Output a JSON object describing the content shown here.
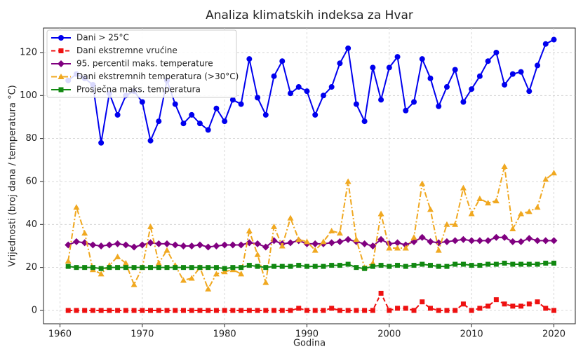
{
  "chart_data": {
    "type": "line",
    "title": "Analiza klimatskih indeksa za Hvar",
    "x_label": "Godina",
    "y_label": "Vrijednosti (broj dana / temperatura °C)",
    "x": [
      1961,
      1962,
      1963,
      1964,
      1965,
      1966,
      1967,
      1968,
      1969,
      1970,
      1971,
      1972,
      1973,
      1974,
      1975,
      1976,
      1977,
      1978,
      1979,
      1980,
      1981,
      1982,
      1983,
      1984,
      1985,
      1986,
      1987,
      1988,
      1989,
      1990,
      1991,
      1992,
      1993,
      1994,
      1995,
      1996,
      1997,
      1998,
      1999,
      2000,
      2001,
      2002,
      2003,
      2004,
      2005,
      2006,
      2007,
      2008,
      2009,
      2010,
      2011,
      2012,
      2013,
      2014,
      2015,
      2016,
      2017,
      2018,
      2019,
      2020
    ],
    "xlim": [
      1958,
      2022.6
    ],
    "xticks": [
      1960,
      1970,
      1980,
      1990,
      2000,
      2010,
      2020
    ],
    "ylim": [
      -6.2,
      131.4
    ],
    "yticks": [
      0,
      20,
      40,
      60,
      80,
      100,
      120
    ],
    "grid": true,
    "legend": "upper left",
    "series": [
      {
        "name": "Dani > 25°C",
        "color": "#0000ee",
        "marker": "circle",
        "linestyle": "solid",
        "values": [
          107,
          110,
          108,
          105,
          78,
          101,
          91,
          100,
          102,
          97,
          79,
          88,
          107,
          96,
          87,
          91,
          87,
          84,
          94,
          88,
          98,
          96,
          117,
          99,
          91,
          109,
          116,
          101,
          104,
          102,
          91,
          100,
          104,
          115,
          122,
          96,
          88,
          113,
          98,
          113,
          118,
          93,
          97,
          117,
          108,
          95,
          104,
          112,
          97,
          103,
          109,
          116,
          120,
          105,
          110,
          111,
          102,
          114,
          124,
          126
        ]
      },
      {
        "name": "Dani ekstremne vrućine",
        "color": "#ee1111",
        "marker": "square",
        "linestyle": "dashed",
        "values": [
          0,
          0,
          0,
          0,
          0,
          0,
          0,
          0,
          0,
          0,
          0,
          0,
          0,
          0,
          0,
          0,
          0,
          0,
          0,
          0,
          0,
          0,
          0,
          0,
          0,
          0,
          0,
          0,
          1,
          0,
          0,
          0,
          1,
          0,
          0,
          0,
          0,
          0,
          8,
          0,
          1,
          1,
          0,
          4,
          1,
          0,
          0,
          0,
          3,
          0,
          1,
          2,
          5,
          3,
          2,
          2,
          3,
          4,
          1,
          0
        ]
      },
      {
        "name": "95. percentil maks. temperature",
        "color": "#800080",
        "marker": "diamond",
        "linestyle": "solid",
        "values": [
          30.5,
          32,
          31.5,
          30.5,
          30,
          30.5,
          31,
          30.5,
          29.5,
          30.5,
          31.5,
          31,
          31,
          30.5,
          30,
          30,
          30.5,
          29.5,
          30,
          30.5,
          30.5,
          30.5,
          31.5,
          31,
          29.5,
          32.5,
          31,
          31.5,
          32.5,
          31,
          31,
          31,
          31.5,
          32,
          33,
          32,
          31,
          30,
          33,
          31,
          31.5,
          30.5,
          32,
          34,
          32,
          31.5,
          32,
          32.5,
          33,
          32.5,
          32.5,
          32.5,
          34,
          34,
          32,
          32,
          33.5,
          32.5,
          32.5,
          32.5
        ]
      },
      {
        "name": "Dani ekstremnih temperatura (>30°C)",
        "color": "#f0a820",
        "marker": "triangle",
        "linestyle": "dashdot",
        "values": [
          23,
          48,
          36,
          19,
          17,
          21,
          25,
          22,
          12,
          20,
          39,
          22,
          28,
          21,
          14,
          15,
          20,
          10,
          17,
          18,
          19,
          17,
          37,
          26,
          13,
          39,
          30,
          43,
          33,
          32,
          28,
          32,
          37,
          36,
          60,
          33,
          20,
          22,
          45,
          29,
          29,
          29,
          34,
          59,
          47,
          28,
          40,
          40,
          57,
          45,
          52,
          50,
          51,
          67,
          38,
          45,
          46,
          48,
          61,
          64
        ]
      },
      {
        "name": "Prosječna maks. temperatura",
        "color": "#118811",
        "marker": "square",
        "linestyle": "solid",
        "values": [
          20.5,
          20,
          20,
          20,
          19.5,
          20,
          20,
          20,
          20,
          20,
          20,
          20,
          20,
          20,
          20,
          20,
          20,
          20,
          20,
          19.5,
          20,
          20,
          21,
          20.5,
          20,
          20.5,
          20.5,
          20.5,
          21,
          20.5,
          20.5,
          20.5,
          21,
          21,
          21.5,
          20,
          19.5,
          20.5,
          21,
          20.5,
          21,
          20.5,
          21,
          21.5,
          21,
          20.5,
          20.5,
          21.5,
          21.5,
          21,
          21,
          21.5,
          21.5,
          22,
          21.5,
          21.5,
          21.5,
          21.5,
          22,
          22
        ]
      }
    ]
  }
}
